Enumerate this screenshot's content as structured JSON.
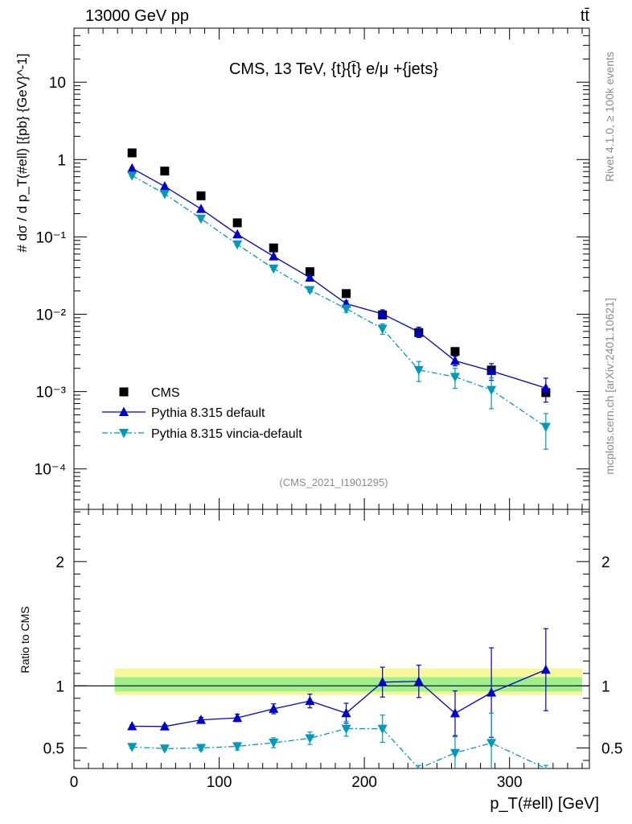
{
  "header": {
    "left": "13000 GeV pp",
    "right": "tt̄"
  },
  "side_labels": {
    "rivet": "Rivet 4.1.0, ≥ 100k events",
    "mcplots": "mcplots.cern.ch [arXiv:2401.10621]"
  },
  "chart_data": {
    "type": "scatter",
    "title": "CMS, 13 TeV, {t}{t̄} e/μ +{jets}",
    "analysis_tag": "(CMS_2021_I1901295)",
    "xlabel": "p_T(#ell) [GeV]",
    "ylabel": "# dσ / d p_T(#ell) [{pb} {GeV}^-1]",
    "ratio_ylabel": "Ratio to CMS",
    "xlim": [
      0,
      355
    ],
    "ylim_log": [
      3e-05,
      50
    ],
    "ratio_ylim": [
      0.335,
      2.42
    ],
    "x_ticks": [
      "0",
      "100",
      "200",
      "300"
    ],
    "y_ticks": [
      "10⁻⁴",
      "10⁻³",
      "10⁻²",
      "10⁻¹",
      "1",
      "10"
    ],
    "ratio_ticks": [
      "0.5",
      "1",
      "2"
    ],
    "x": [
      40,
      62.5,
      87.5,
      112.5,
      137.5,
      162.5,
      187.5,
      212.5,
      237.5,
      262.5,
      287.5,
      325
    ],
    "legend": [
      "CMS",
      "Pythia 8.315 default",
      "Pythia 8.315 vincia-default"
    ],
    "series": [
      {
        "name": "CMS",
        "color": "#000000",
        "marker": "square",
        "values": [
          1.22,
          0.71,
          0.34,
          0.152,
          0.072,
          0.0355,
          0.0185,
          0.0098,
          0.0058,
          0.0033,
          0.0019,
          0.00097
        ]
      },
      {
        "name": "Pythia 8.315 default",
        "color": "#0000cc",
        "marker": "triangle-up",
        "values": [
          0.77,
          0.45,
          0.23,
          0.108,
          0.056,
          0.0298,
          0.0137,
          0.0101,
          0.0059,
          0.0025,
          0.00185,
          0.00111
        ],
        "errors": [
          0.02,
          0.012,
          0.007,
          0.004,
          0.002,
          0.0015,
          0.0012,
          0.0013,
          0.0009,
          0.00035,
          0.00045,
          0.00038
        ],
        "ratio": [
          0.675,
          0.673,
          0.726,
          0.742,
          0.815,
          0.878,
          0.78,
          1.03,
          1.036,
          0.779,
          0.946,
          1.13
        ],
        "ratio_err": [
          0.01,
          0.012,
          0.02,
          0.03,
          0.04,
          0.055,
          0.08,
          0.12,
          0.13,
          0.18,
          0.36,
          0.33
        ]
      },
      {
        "name": "Pythia 8.315 vincia-default",
        "color": "#0099bb",
        "marker": "triangle-down",
        "values": [
          0.62,
          0.36,
          0.172,
          0.08,
          0.039,
          0.0205,
          0.0118,
          0.0065,
          0.0019,
          0.00155,
          0.00105,
          0.00035
        ],
        "errors": [
          0.015,
          0.01,
          0.006,
          0.003,
          0.0015,
          0.0012,
          0.0012,
          0.001,
          0.00055,
          0.00045,
          0.00045,
          0.00017
        ],
        "ratio": [
          0.508,
          0.495,
          0.5,
          0.513,
          0.542,
          0.578,
          0.655,
          0.655,
          0.3,
          0.46,
          0.54,
          0.3
        ],
        "ratio_err": [
          0.012,
          0.013,
          0.02,
          0.03,
          0.04,
          0.05,
          0.06,
          0.11,
          0.06,
          0.13,
          0.24,
          0.06
        ]
      }
    ]
  }
}
